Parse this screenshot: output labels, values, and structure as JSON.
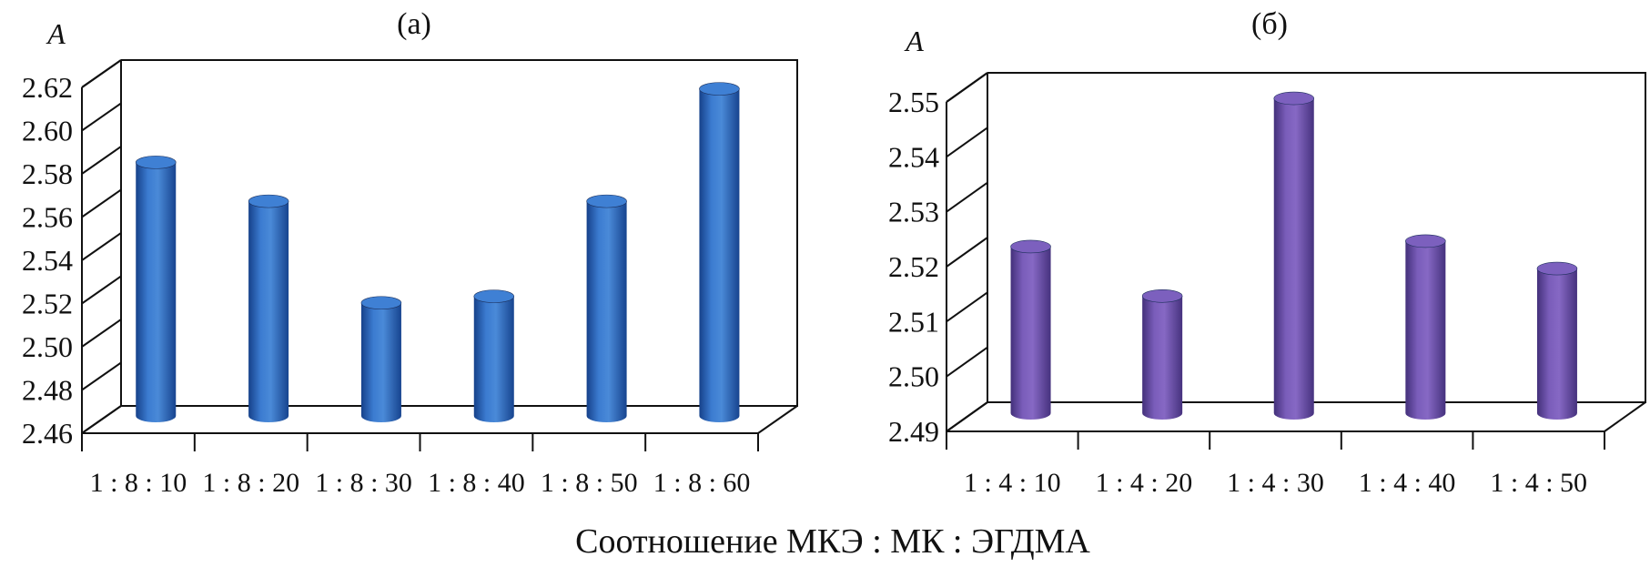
{
  "chart_data": [
    {
      "type": "bar",
      "title": "(а)",
      "ylabel": "A",
      "categories": [
        "1 : 8 : 10",
        "1 : 8 : 20",
        "1 : 8 : 30",
        "1 : 8 : 40",
        "1 : 8 : 50",
        "1 : 8 : 60"
      ],
      "values": [
        2.579,
        2.561,
        2.514,
        2.517,
        2.561,
        2.613
      ],
      "yticks": [
        "2.46",
        "2.48",
        "2.50",
        "2.52",
        "2.54",
        "2.56",
        "2.58",
        "2.60",
        "2.62"
      ],
      "ylim": [
        2.46,
        2.62
      ],
      "color": "#2b63b4",
      "style": "3d-cylinder"
    },
    {
      "type": "bar",
      "title": "(б)",
      "ylabel": "A",
      "categories": [
        "1 : 4 : 10",
        "1 : 4 : 20",
        "1 : 4 : 30",
        "1 : 4 : 40",
        "1 : 4 : 50"
      ],
      "values": [
        2.521,
        2.512,
        2.548,
        2.522,
        2.517
      ],
      "yticks": [
        "2.49",
        "2.50",
        "2.51",
        "2.52",
        "2.53",
        "2.54",
        "2.55"
      ],
      "ylim": [
        2.49,
        2.55
      ],
      "color": "#6a4ea8",
      "style": "3d-cylinder"
    }
  ],
  "xlabel": "Соотношение МКЭ : МК : ЭГДМА"
}
